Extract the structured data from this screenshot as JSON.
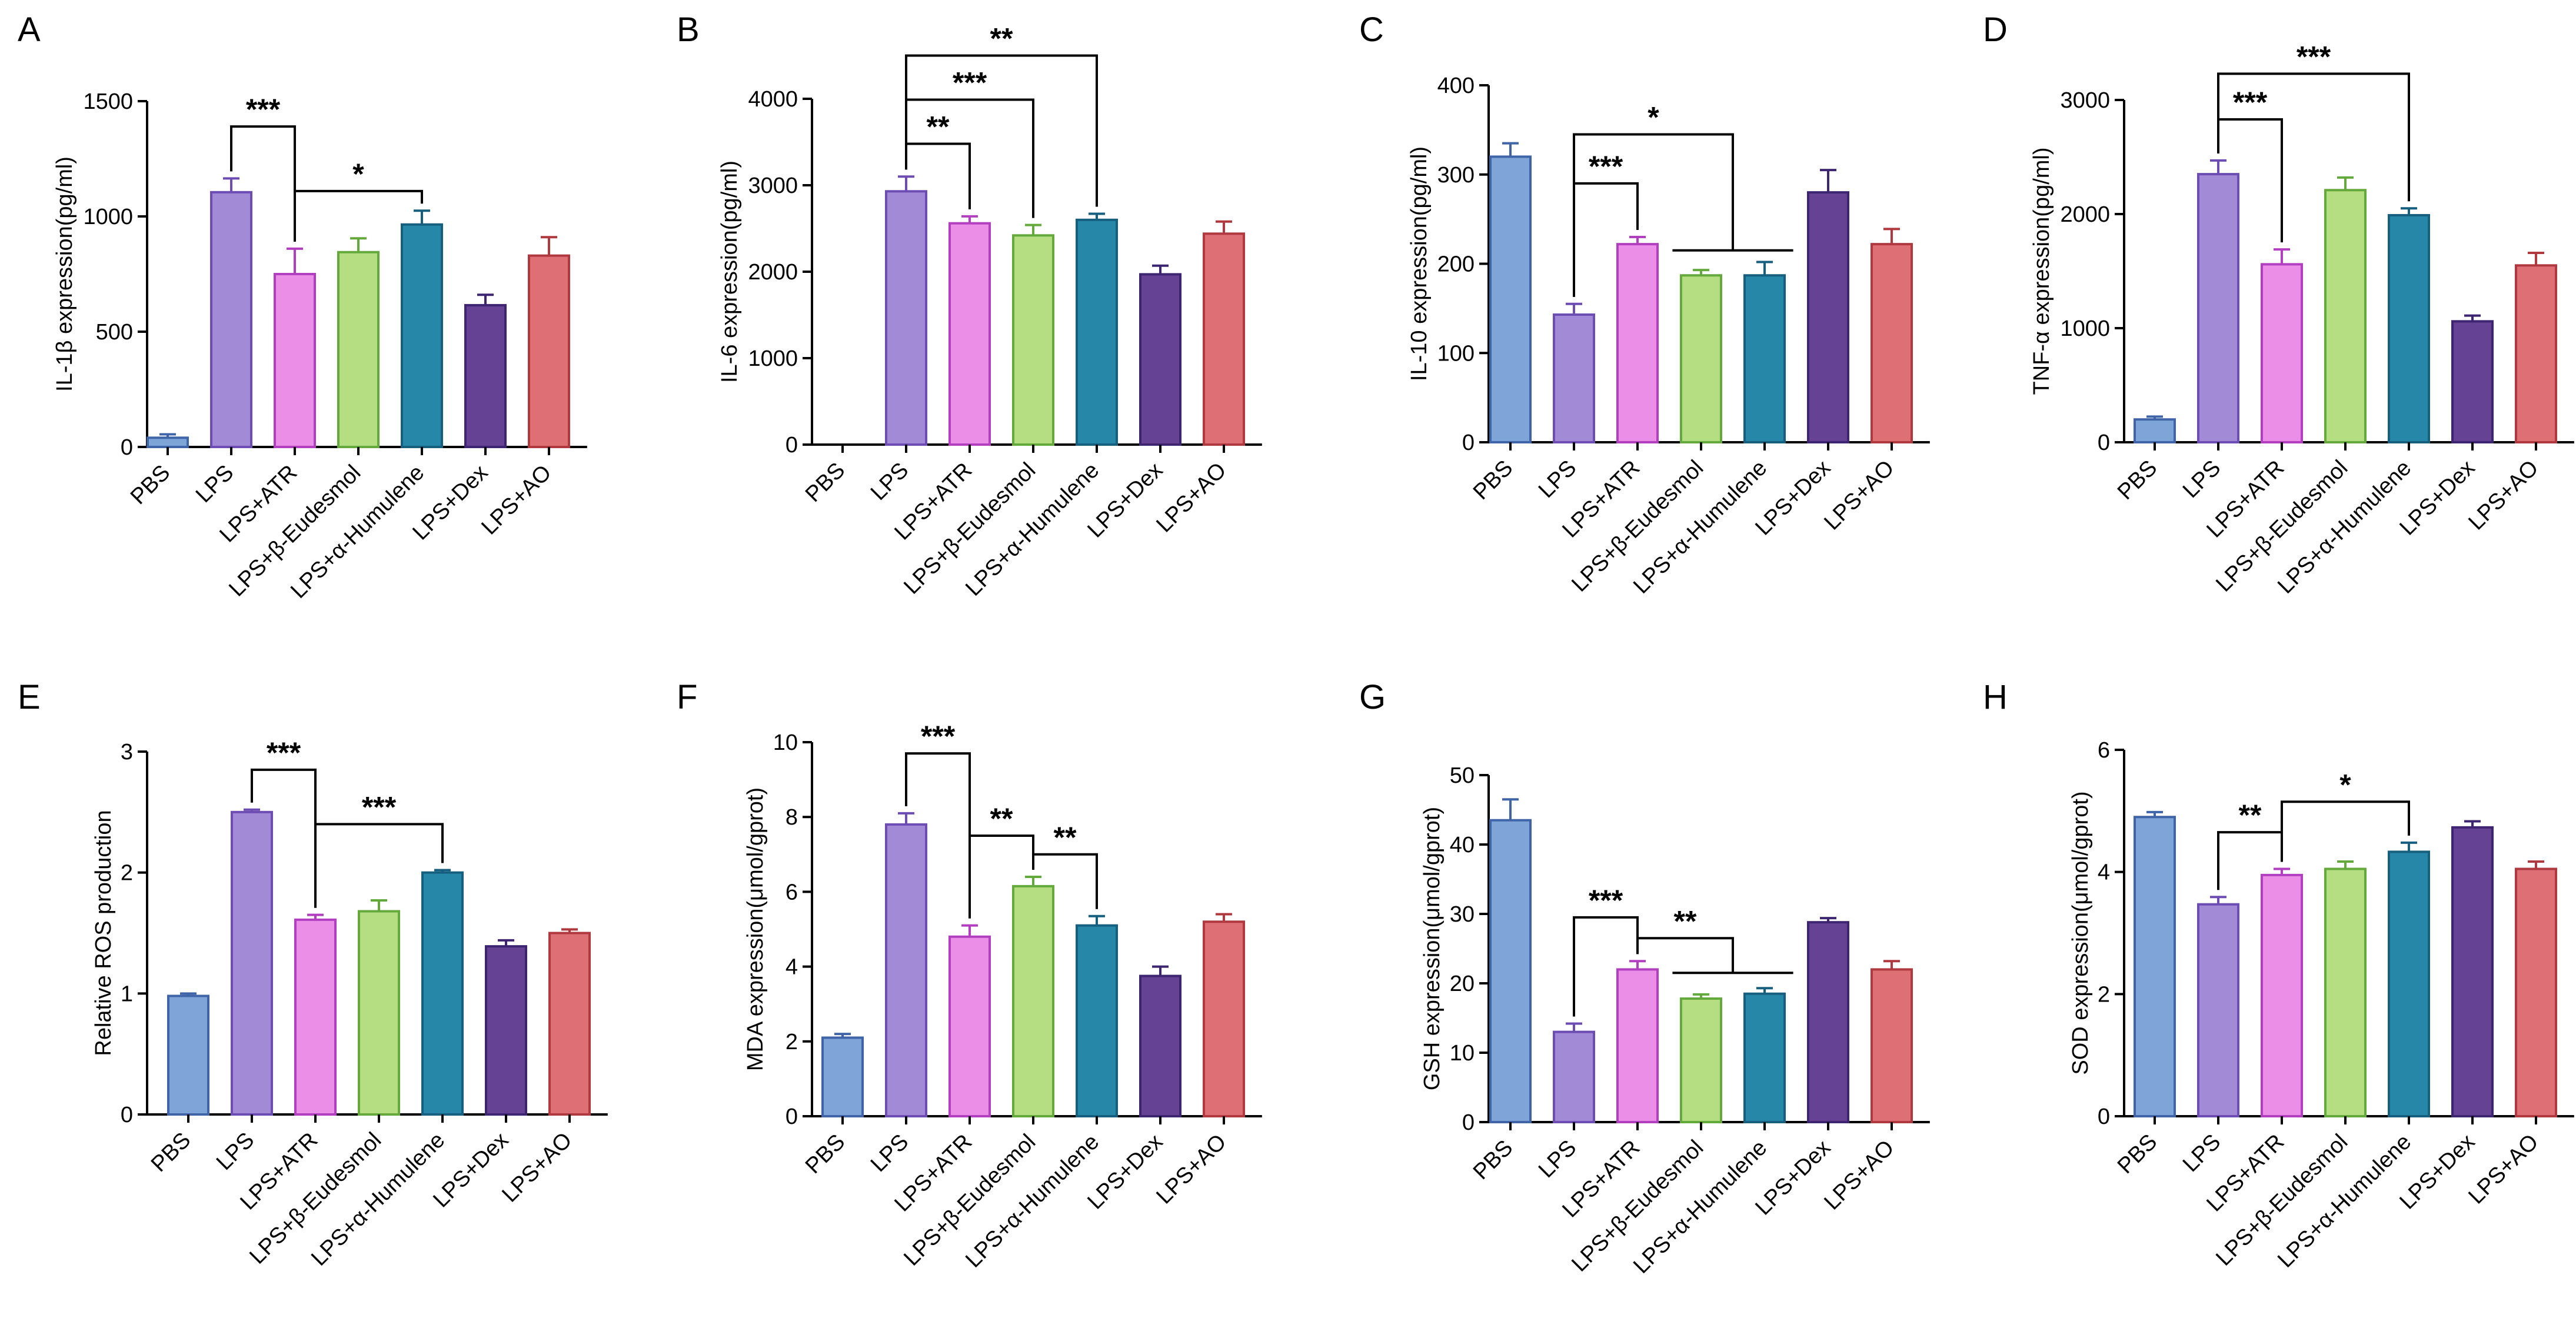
{
  "figure": {
    "categories": [
      "PBS",
      "LPS",
      "LPS+ATR",
      "LPS+β-Eudesmol",
      "LPS+α-Humulene",
      "LPS+Dex",
      "LPS+AO"
    ],
    "colors": {
      "fill": [
        "#7ea4d8",
        "#a28ad6",
        "#ea8ee8",
        "#b5dd82",
        "#2687a8",
        "#654293",
        "#de6f75"
      ],
      "stroke": [
        "#3f65a8",
        "#6d4cb3",
        "#b23fbf",
        "#63a93c",
        "#175f7f",
        "#3d2571",
        "#b0393f"
      ]
    }
  },
  "chart_data": [
    {
      "panel": "A",
      "type": "bar",
      "ylabel": "IL-1β expression(pg/ml)",
      "ylim": [
        0,
        1500
      ],
      "yticks": [
        0,
        500,
        1000,
        1500
      ],
      "values": [
        40,
        1105,
        750,
        845,
        965,
        615,
        830
      ],
      "errors": [
        15,
        60,
        110,
        60,
        60,
        45,
        80
      ],
      "sig": [
        {
          "from": 1,
          "to": 2,
          "label": "***",
          "kind": "simple",
          "y": 1390
        },
        {
          "from": 2,
          "to": 4,
          "label": "*",
          "kind": "simple",
          "y": 1110
        }
      ]
    },
    {
      "panel": "B",
      "type": "bar",
      "ylabel": "IL-6 expression(pg/ml)",
      "ylim": [
        0,
        4000
      ],
      "yticks": [
        0,
        1000,
        2000,
        3000,
        4000
      ],
      "values": [
        0,
        2930,
        2560,
        2420,
        2600,
        1970,
        2440
      ],
      "errors": [
        0,
        170,
        80,
        120,
        70,
        100,
        140
      ],
      "sig": [
        {
          "from": 1,
          "to": 2,
          "label": "**",
          "kind": "simple",
          "y": 3480
        },
        {
          "from": 1,
          "to": 3,
          "label": "***",
          "kind": "simple",
          "y": 3990
        },
        {
          "from": 1,
          "to": 4,
          "label": "**",
          "kind": "simple",
          "y": 4500
        }
      ]
    },
    {
      "panel": "C",
      "type": "bar",
      "ylabel": "IL-10 expression(pg/ml)",
      "ylim": [
        0,
        400
      ],
      "yticks": [
        0,
        100,
        200,
        300,
        400
      ],
      "values": [
        320,
        143,
        222,
        187,
        187,
        280,
        222
      ],
      "errors": [
        15,
        12,
        8,
        6,
        15,
        25,
        17
      ],
      "sig": [
        {
          "from": 1,
          "to": 2,
          "label": "***",
          "kind": "simple",
          "y": 290
        },
        {
          "from": 1,
          "to": [
            3,
            4
          ],
          "label": "*",
          "kind": "group",
          "y": 345,
          "ybar": 225,
          "bracket": 215
        }
      ]
    },
    {
      "panel": "D",
      "type": "bar",
      "ylabel": "TNF-α expression(pg/ml)",
      "ylim": [
        0,
        3000
      ],
      "yticks": [
        0,
        1000,
        2000,
        3000
      ],
      "values": [
        200,
        2350,
        1560,
        2210,
        1990,
        1060,
        1550
      ],
      "errors": [
        25,
        120,
        130,
        110,
        60,
        50,
        110
      ],
      "sig": [
        {
          "from": 1,
          "to": 2,
          "label": "***",
          "kind": "simple",
          "y": 2830
        },
        {
          "from": 1,
          "to": 4,
          "label": "***",
          "kind": "simple",
          "y": 3230
        }
      ]
    },
    {
      "panel": "E",
      "type": "bar",
      "ylabel": "Relative ROS production",
      "ylim": [
        0,
        3
      ],
      "yticks": [
        0,
        1,
        2,
        3
      ],
      "values": [
        0.98,
        2.5,
        1.61,
        1.68,
        2.0,
        1.39,
        1.5
      ],
      "errors": [
        0.02,
        0.02,
        0.04,
        0.09,
        0.02,
        0.05,
        0.03
      ],
      "sig": [
        {
          "from": 1,
          "to": 2,
          "label": "***",
          "kind": "simple",
          "y": 2.85
        },
        {
          "from": 2,
          "to": 4,
          "label": "***",
          "kind": "simple",
          "y": 2.4
        }
      ]
    },
    {
      "panel": "F",
      "type": "bar",
      "ylabel": "MDA expression(μmol/gprot)",
      "ylim": [
        0,
        10
      ],
      "yticks": [
        0,
        2,
        4,
        6,
        8,
        10
      ],
      "values": [
        2.1,
        7.8,
        4.8,
        6.15,
        5.1,
        3.75,
        5.2
      ],
      "errors": [
        0.1,
        0.3,
        0.3,
        0.25,
        0.25,
        0.25,
        0.2
      ],
      "sig": [
        {
          "from": 1,
          "to": 2,
          "label": "***",
          "kind": "simple",
          "y": 9.7
        },
        {
          "from": 2,
          "to": 3,
          "label": "**",
          "kind": "simple",
          "y": 7.5
        },
        {
          "from": 3,
          "to": 4,
          "label": "**",
          "kind": "simple",
          "y": 7.0
        }
      ]
    },
    {
      "panel": "G",
      "type": "bar",
      "ylabel": "GSH expression(μmol/gprot)",
      "ylim": [
        0,
        50
      ],
      "yticks": [
        0,
        10,
        20,
        30,
        40,
        50
      ],
      "values": [
        43.5,
        13,
        22,
        17.8,
        18.5,
        28.8,
        22
      ],
      "errors": [
        3,
        1.2,
        1.2,
        0.6,
        0.8,
        0.6,
        1.2
      ],
      "sig": [
        {
          "from": 1,
          "to": 2,
          "label": "***",
          "kind": "simple",
          "y": 29.5
        },
        {
          "from": 2,
          "to": [
            3,
            4
          ],
          "label": "**",
          "kind": "group",
          "y": 26.5,
          "ybar": 22,
          "bracket": 21.5
        }
      ]
    },
    {
      "panel": "H",
      "type": "bar",
      "ylabel": "SOD expression(μmol/gprot)",
      "ylim": [
        0,
        6
      ],
      "yticks": [
        0,
        2,
        4,
        6
      ],
      "values": [
        4.9,
        3.47,
        3.95,
        4.05,
        4.33,
        4.73,
        4.05
      ],
      "errors": [
        0.08,
        0.12,
        0.1,
        0.12,
        0.15,
        0.1,
        0.12
      ],
      "sig": [
        {
          "from": 1,
          "to": 2,
          "label": "**",
          "kind": "simple",
          "y": 4.65
        },
        {
          "from": 2,
          "to": 4,
          "label": "*",
          "kind": "simple",
          "y": 5.15
        }
      ]
    }
  ]
}
